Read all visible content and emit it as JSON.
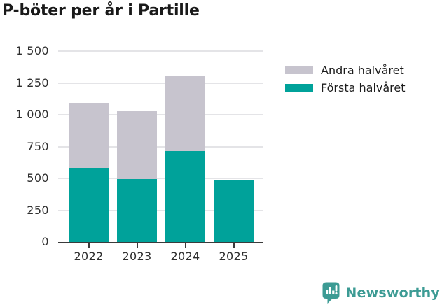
{
  "header": {
    "title": "P-böter per år i Partille"
  },
  "chart_data": {
    "type": "bar",
    "stacked": true,
    "title": "P-böter per år i Partille",
    "categories": [
      "2022",
      "2023",
      "2024",
      "2025"
    ],
    "series": [
      {
        "name": "Första halvåret",
        "color": "#00a29a",
        "values": [
          580,
          495,
          715,
          485
        ]
      },
      {
        "name": "Andra halvåret",
        "color": "#c7c4ce",
        "values": [
          515,
          530,
          595,
          0
        ]
      }
    ],
    "totals": [
      1095,
      1025,
      1310,
      485
    ],
    "xlabel": "",
    "ylabel": "",
    "ylim": [
      0,
      1500
    ],
    "ytick_step": 250,
    "yticks": [
      {
        "value": 0,
        "label": "0"
      },
      {
        "value": 250,
        "label": "250"
      },
      {
        "value": 500,
        "label": "500"
      },
      {
        "value": 750,
        "label": "750"
      },
      {
        "value": 1000,
        "label": "1 000"
      },
      {
        "value": 1250,
        "label": "1 250"
      },
      {
        "value": 1500,
        "label": "1 500"
      }
    ],
    "grid": true,
    "legend_position": "right"
  },
  "legend": {
    "items": [
      {
        "label": "Andra halvåret",
        "color": "#c7c4ce"
      },
      {
        "label": "Första halvåret",
        "color": "#00a29a"
      }
    ]
  },
  "colors": {
    "first_half": "#00a29a",
    "second_half": "#c7c4ce",
    "axis": "#3b3b3b",
    "gridline": "#e4e4e7",
    "brand_teal": "#3c9b94"
  },
  "footer": {
    "brand_name": "Newsworthy"
  }
}
